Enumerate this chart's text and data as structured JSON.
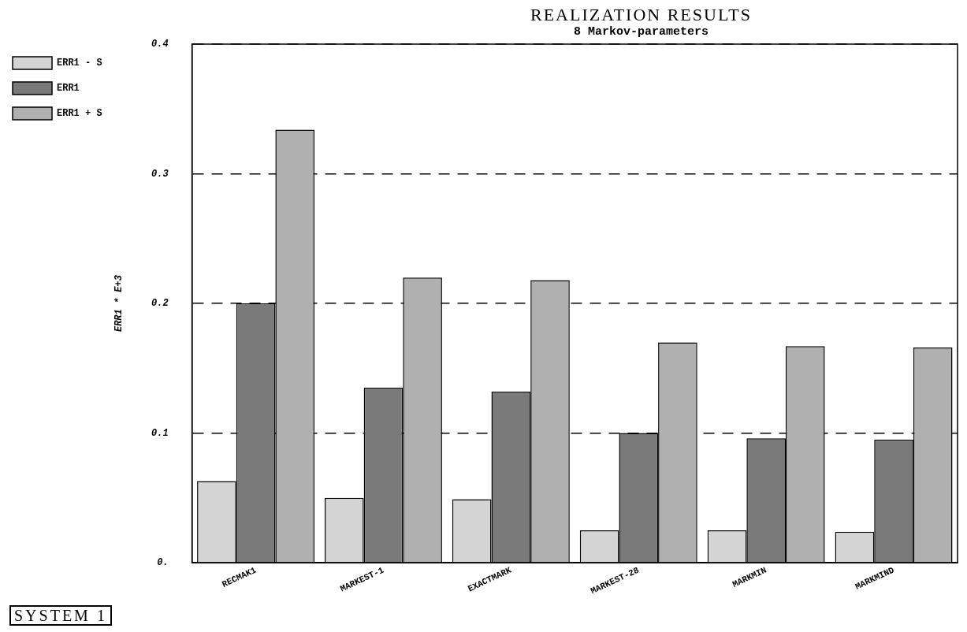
{
  "chart_data": {
    "type": "bar",
    "title": "REALIZATION RESULTS",
    "subtitle": "8 Markov-parameters",
    "ylabel": "ERR1 * E+3",
    "categories": [
      "RECMAK1",
      "MARKEST-1",
      "EXACTMARK",
      "MARKEST-28",
      "MARKMIN",
      "MARKMIND"
    ],
    "series": [
      {
        "name": "ERR1 - S",
        "color": "#d4d4d4",
        "values": [
          0.063,
          0.05,
          0.049,
          0.025,
          0.025,
          0.024
        ]
      },
      {
        "name": "ERR1",
        "color": "#7a7a7a",
        "values": [
          0.2,
          0.135,
          0.132,
          0.1,
          0.096,
          0.095
        ]
      },
      {
        "name": "ERR1 + S",
        "color": "#b0b0b0",
        "values": [
          0.334,
          0.22,
          0.218,
          0.17,
          0.167,
          0.166
        ]
      }
    ],
    "ylim": [
      0,
      0.4
    ],
    "yticks": [
      {
        "value": 0,
        "label": "0."
      },
      0.1,
      0.2,
      0.3,
      0.4
    ],
    "grid": "y",
    "line_style": "dashed",
    "legend": "top left",
    "annotations": [
      "SYSTEM 1"
    ]
  }
}
